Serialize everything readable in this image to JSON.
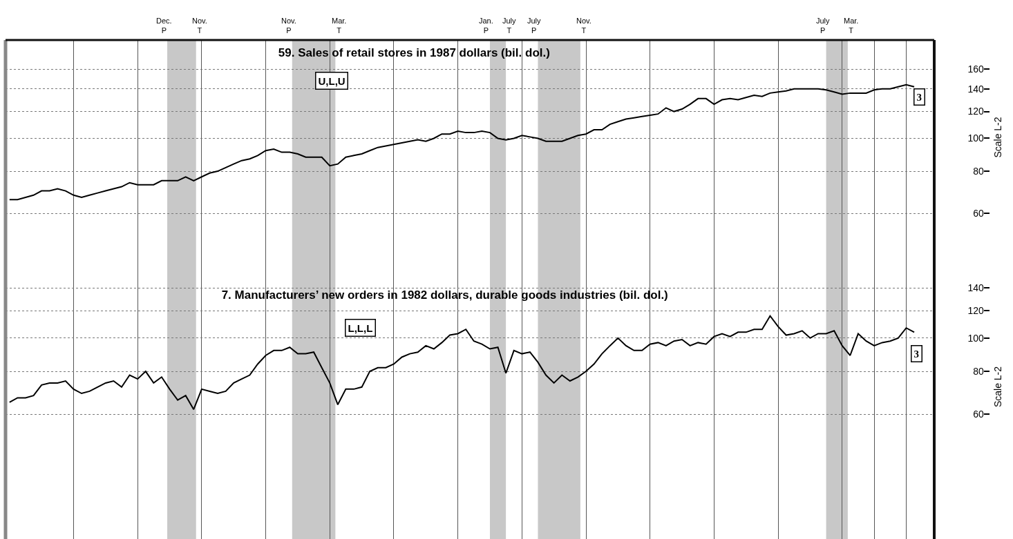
{
  "chart_data": [
    {
      "type": "line",
      "title": "59. Sales of retail stores in 1987 dollars (bil. dol.)",
      "ylabel": "Scale L-2",
      "log": "y",
      "grid": true,
      "tick_labels": "y",
      "categories": [
        null,
        null,
        null,
        null,
        null,
        null,
        null,
        null,
        null,
        null,
        null,
        null,
        null,
        null,
        null,
        null,
        null,
        null,
        null,
        null,
        null,
        null,
        null,
        null,
        null,
        null,
        null,
        null,
        null,
        null,
        null,
        null,
        null,
        null,
        null,
        null,
        null,
        null,
        null,
        null,
        null,
        null,
        null,
        null,
        null,
        null,
        null,
        null,
        null,
        null,
        null,
        null,
        null,
        null,
        null,
        null,
        null,
        null,
        null,
        null,
        null,
        null,
        null,
        null,
        null,
        null,
        null,
        null,
        null,
        null,
        null,
        null,
        null,
        null,
        null,
        null,
        null,
        null,
        null,
        null,
        null,
        null,
        null,
        null,
        null,
        null,
        null,
        null,
        null,
        null,
        null,
        null,
        null,
        null,
        null,
        null,
        null,
        null,
        null,
        null,
        null,
        null,
        null,
        null,
        null,
        null,
        null,
        null,
        null,
        null,
        null,
        null,
        null,
        null,
        null,
        null
      ],
      "ylim": [
        52,
        195
      ],
      "yticks": [
        60,
        80,
        100,
        120,
        140,
        160
      ],
      "annotations": [
        "U,L,U",
        "3",
        "Dec.\nP",
        "Nov.\nT",
        "Nov.\nP",
        "Mar.\nT",
        "Jan.\nP",
        "July\nT",
        "July\nP",
        "Nov.\nT",
        "July\nP",
        "Mar.\nT"
      ],
      "series": [
        {
          "color": "#000000",
          "values": [
            66,
            66,
            67,
            68,
            70,
            70,
            71,
            70,
            68,
            67,
            68,
            69,
            70,
            71,
            72,
            74,
            73,
            73,
            73,
            75,
            75,
            75,
            77,
            75,
            77,
            79,
            80,
            82,
            84,
            86,
            87,
            89,
            92,
            93,
            91,
            91,
            90,
            88,
            88,
            88,
            83,
            84,
            88,
            89,
            90,
            92,
            94,
            95,
            96,
            97,
            98,
            99,
            98,
            100,
            103,
            103,
            105,
            104,
            104,
            105,
            104,
            100,
            99,
            100,
            102,
            101,
            100,
            98,
            98,
            98,
            100,
            102,
            103,
            106,
            106,
            110,
            112,
            114,
            115,
            116,
            117,
            118,
            123,
            120,
            122,
            126,
            131,
            131,
            126,
            130,
            131,
            130,
            132,
            134,
            133,
            136,
            137,
            138,
            140,
            140,
            140,
            140,
            139,
            137,
            135,
            136,
            136,
            136,
            139,
            140,
            140,
            142,
            144,
            142,
            null,
            null
          ]
        }
      ]
    },
    {
      "type": "line",
      "title": "7. Manufacturers’ new orders in 1982 dollars, durable goods industries (bil. dol.)",
      "ylabel": "Scale L-2",
      "log": "y",
      "grid": true,
      "tick_labels": "y",
      "categories": [
        null,
        null,
        null,
        null,
        null,
        null,
        null,
        null,
        null,
        null,
        null,
        null,
        null,
        null,
        null,
        null,
        null,
        null,
        null,
        null,
        null,
        null,
        null,
        null,
        null,
        null,
        null,
        null,
        null,
        null,
        null,
        null,
        null,
        null,
        null,
        null,
        null,
        null,
        null,
        null,
        null,
        null,
        null,
        null,
        null,
        null,
        null,
        null,
        null,
        null,
        null,
        null,
        null,
        null,
        null,
        null,
        null,
        null,
        null,
        null,
        null,
        null,
        null,
        null,
        null,
        null,
        null,
        null,
        null,
        null,
        null,
        null,
        null,
        null,
        null,
        null,
        null,
        null,
        null,
        null,
        null,
        null,
        null,
        null,
        null,
        null,
        null,
        null,
        null,
        null,
        null,
        null,
        null,
        null,
        null,
        null,
        null,
        null,
        null,
        null,
        null,
        null,
        null,
        null,
        null,
        null,
        null,
        null,
        null,
        null,
        null,
        null,
        null,
        null,
        null,
        null
      ],
      "ylim": [
        26,
        200
      ],
      "yticks": [
        60,
        80,
        100,
        120,
        140
      ],
      "annotations": [
        "L,L,L",
        "3"
      ],
      "series": [
        {
          "color": "#000000",
          "values": [
            65,
            67,
            67,
            68,
            73,
            74,
            74,
            75,
            71,
            69,
            70,
            72,
            74,
            75,
            72,
            78,
            76,
            80,
            74,
            77,
            71,
            66,
            68,
            62,
            71,
            70,
            69,
            70,
            74,
            76,
            78,
            84,
            89,
            92,
            92,
            94,
            90,
            90,
            91,
            82,
            74,
            64,
            71,
            71,
            72,
            80,
            82,
            82,
            84,
            88,
            90,
            91,
            95,
            93,
            97,
            102,
            103,
            106,
            98,
            96,
            93,
            94,
            79,
            92,
            90,
            91,
            85,
            78,
            74,
            78,
            75,
            77,
            80,
            84,
            90,
            95,
            100,
            95,
            92,
            92,
            96,
            97,
            95,
            98,
            99,
            95,
            97,
            96,
            101,
            103,
            101,
            104,
            104,
            106,
            106,
            116,
            108,
            102,
            103,
            105,
            100,
            103,
            103,
            105,
            95,
            89,
            103,
            98,
            95,
            97,
            98,
            100,
            107,
            104,
            null,
            null
          ]
        }
      ]
    }
  ]
}
